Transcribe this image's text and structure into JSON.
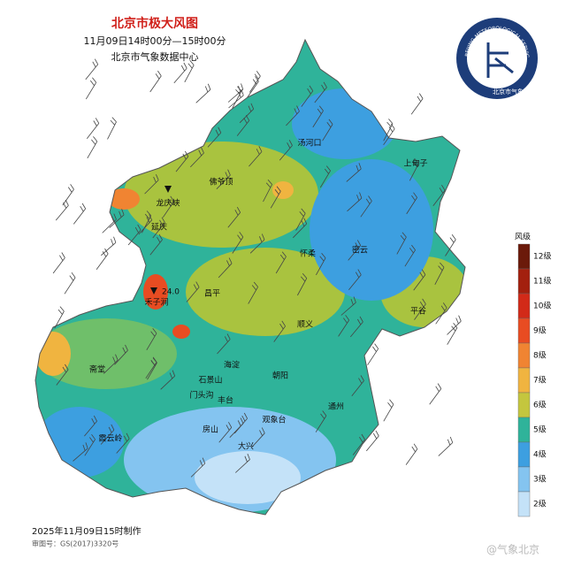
{
  "header": {
    "title": "北京市极大风图",
    "period": "11月09日14时00分—15时00分",
    "source": "北京市气象数据中心"
  },
  "logo": {
    "ring_text": "BEIJING METEOROLOGICAL SERVICE",
    "name": "北京市气象局"
  },
  "places": [
    "汤河口",
    "佛爷顶",
    "上甸子",
    "龙庆峡",
    "延庆",
    "怀柔",
    "密云",
    "昌平",
    "24.0",
    "禾子涧",
    "平谷",
    "顺义",
    "斋堂",
    "海淀",
    "石景山",
    "朝阳",
    "门头沟",
    "丰台",
    "通州",
    "观象台",
    "房山",
    "大兴",
    "霞云岭"
  ],
  "legend": {
    "title": "风级",
    "items": [
      {
        "label": "12级",
        "color": "#6b1a0a"
      },
      {
        "label": "11级",
        "color": "#a3200e"
      },
      {
        "label": "10级",
        "color": "#d22a18"
      },
      {
        "label": "9级",
        "color": "#e84c22"
      },
      {
        "label": "8级",
        "color": "#f08432"
      },
      {
        "label": "7级",
        "color": "#f0b440"
      },
      {
        "label": "6级",
        "color": "#c4c63e"
      },
      {
        "label": "5级",
        "color": "#2fb39a"
      },
      {
        "label": "4级",
        "color": "#3d9fe0"
      },
      {
        "label": "3级",
        "color": "#84c4f0"
      },
      {
        "label": "2级",
        "color": "#c4e2f8"
      }
    ]
  },
  "footer": {
    "made": "2025年11月09日15时制作",
    "review": "审图号：GS(2017)3320号"
  },
  "watermark": "@气象北京"
}
